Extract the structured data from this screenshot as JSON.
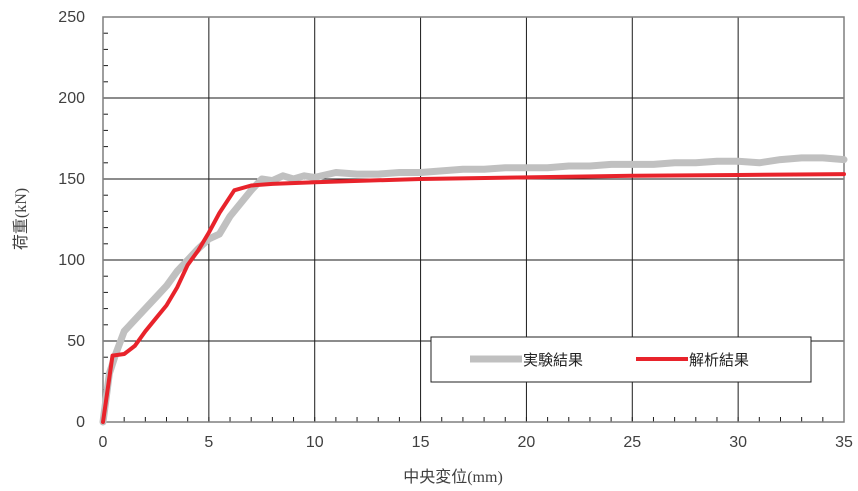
{
  "chart_data": {
    "type": "line",
    "title": "",
    "xlabel": "中央変位(mm)",
    "ylabel": "荷重(kN)",
    "xlim": [
      0,
      35
    ],
    "ylim": [
      0,
      250
    ],
    "x_ticks": [
      0,
      5,
      10,
      15,
      20,
      25,
      30,
      35
    ],
    "y_ticks": [
      0,
      50,
      100,
      150,
      200,
      250
    ],
    "x_tick_labels": [
      "0",
      "5",
      "10",
      "15",
      "20",
      "25",
      "30",
      "35"
    ],
    "y_tick_labels": [
      "0",
      "50",
      "100",
      "150",
      "200",
      "250"
    ],
    "grid": true,
    "minor_ticks": true,
    "legend_position": "bottom-right",
    "series": [
      {
        "name": "実験結果",
        "color": "#c0c0c0",
        "x": [
          0,
          0.3,
          0.6,
          1.0,
          1.5,
          2.0,
          2.5,
          3.0,
          3.5,
          4.0,
          4.5,
          5.0,
          5.5,
          6.0,
          6.5,
          7.0,
          7.5,
          8.0,
          8.5,
          9.0,
          9.5,
          10.0,
          11.0,
          12.0,
          13.0,
          14.0,
          15.0,
          16.0,
          17.0,
          18.0,
          19.0,
          20.0,
          21.0,
          22.0,
          23.0,
          24.0,
          25.0,
          26.0,
          27.0,
          28.0,
          29.0,
          30.0,
          31.0,
          32.0,
          33.0,
          34.0,
          35.0
        ],
        "y": [
          0,
          30,
          42,
          56,
          63,
          70,
          77,
          84,
          93,
          100,
          107,
          113,
          116,
          127,
          135,
          143,
          150,
          149,
          152,
          150,
          152,
          151,
          154,
          153,
          153,
          154,
          154,
          155,
          156,
          156,
          157,
          157,
          157,
          158,
          158,
          159,
          159,
          159,
          160,
          160,
          161,
          161,
          160,
          162,
          163,
          163,
          162
        ]
      },
      {
        "name": "解析結果",
        "color": "#e8232b",
        "x": [
          0,
          0.45,
          1.0,
          1.5,
          2.0,
          2.5,
          3.0,
          3.5,
          4.0,
          4.5,
          5.0,
          5.5,
          6.2,
          7.0,
          8.0,
          10.0,
          15.0,
          20.0,
          25.0,
          30.0,
          35.0
        ],
        "y": [
          0,
          41,
          42,
          47,
          56,
          64,
          72,
          83,
          97,
          106,
          117,
          129,
          143,
          146,
          147,
          148,
          150,
          151,
          152,
          152.5,
          153
        ]
      }
    ]
  }
}
